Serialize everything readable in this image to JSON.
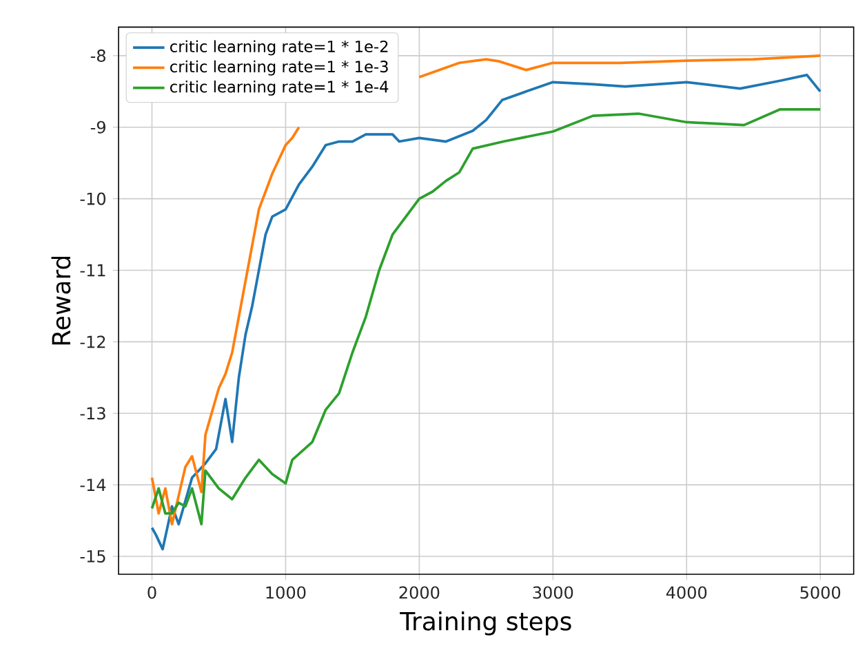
{
  "chart_data": {
    "type": "line",
    "xlabel": "Training steps",
    "ylabel": "Reward",
    "xlim": [
      -250,
      5250
    ],
    "ylim": [
      -15.25,
      -7.6
    ],
    "xticks": [
      0,
      1000,
      2000,
      3000,
      4000,
      5000
    ],
    "yticks": [
      -15,
      -14,
      -13,
      -12,
      -11,
      -10,
      -9,
      -8
    ],
    "grid": true,
    "legend": "top left",
    "series": [
      {
        "name": "critic learning rate=1 * 1e-2",
        "color": "#1f77b4",
        "x": [
          0,
          30,
          80,
          150,
          200,
          300,
          400,
          480,
          550,
          600,
          650,
          700,
          750,
          800,
          850,
          900,
          1000,
          1100,
          1200,
          1300,
          1400,
          1500,
          1600,
          1800,
          1850,
          2000,
          2200,
          2400,
          2500,
          2620,
          2800,
          3000,
          3300,
          3540,
          4000,
          4400,
          4700,
          4900,
          5000
        ],
        "values": [
          -14.6,
          -14.7,
          -14.9,
          -14.3,
          -14.55,
          -13.9,
          -13.7,
          -13.5,
          -12.8,
          -13.4,
          -12.5,
          -11.9,
          -11.5,
          -11.0,
          -10.5,
          -10.25,
          -10.15,
          -9.8,
          -9.55,
          -9.25,
          -9.2,
          -9.2,
          -9.1,
          -9.1,
          -9.2,
          -9.15,
          -9.2,
          -9.05,
          -8.9,
          -8.62,
          -8.5,
          -8.37,
          -8.4,
          -8.43,
          -8.37,
          -8.46,
          -8.35,
          -8.27,
          -8.5
        ]
      },
      {
        "name": "critic learning rate=1 * 1e-3",
        "color": "#ff7f0e",
        "x": [
          0,
          50,
          100,
          150,
          250,
          300,
          370,
          400,
          500,
          550,
          600,
          700,
          800,
          900,
          1000,
          1050,
          1100,
          1300,
          1700,
          2000,
          2300,
          2500,
          2600,
          2800,
          3000,
          3500,
          4000,
          4500,
          5000
        ],
        "values": [
          -13.9,
          -14.4,
          -14.05,
          -14.55,
          -13.75,
          -13.6,
          -14.1,
          -13.3,
          -12.65,
          -12.45,
          -12.15,
          -11.15,
          -10.15,
          -9.65,
          -9.25,
          -9.15,
          -9.0,
          null,
          null,
          -8.3,
          -8.1,
          -8.05,
          -8.08,
          -8.2,
          -8.1,
          -8.1,
          -8.07,
          -8.05,
          -8.0
        ]
      },
      {
        "name": "critic learning rate=1 * 1e-4",
        "color": "#2ca02c",
        "x": [
          0,
          50,
          100,
          150,
          200,
          250,
          300,
          370,
          400,
          500,
          600,
          700,
          800,
          900,
          1000,
          1050,
          1200,
          1300,
          1400,
          1500,
          1600,
          1700,
          1800,
          1900,
          2000,
          2100,
          2200,
          2300,
          2400,
          2630,
          3000,
          3300,
          3640,
          4000,
          4430,
          4700,
          5000
        ],
        "values": [
          -14.33,
          -14.05,
          -14.4,
          -14.4,
          -14.25,
          -14.3,
          -14.05,
          -14.55,
          -13.8,
          -14.05,
          -14.2,
          -13.9,
          -13.65,
          -13.85,
          -13.98,
          -13.65,
          -13.4,
          -12.95,
          -12.72,
          -12.15,
          -11.65,
          -11.0,
          -10.5,
          -10.25,
          -10.0,
          -9.9,
          -9.75,
          -9.63,
          -9.3,
          -9.2,
          -9.06,
          -8.84,
          -8.81,
          -8.93,
          -8.97,
          -8.75,
          -8.75
        ]
      }
    ]
  }
}
